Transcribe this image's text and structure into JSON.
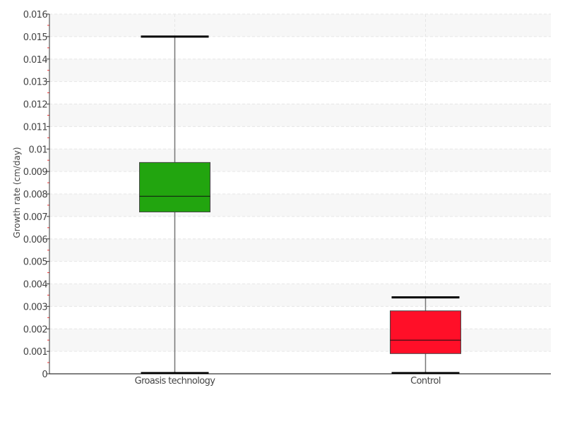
{
  "chart_data": {
    "type": "boxplot",
    "title": "",
    "xlabel": "",
    "ylabel": "Growth rate (cm/day)",
    "ylim": [
      0,
      0.016
    ],
    "y_ticks": [
      "0",
      "0.001",
      "0.002",
      "0.003",
      "0.004",
      "0.005",
      "0.006",
      "0.007",
      "0.008",
      "0.009",
      "0.01",
      "0.011",
      "0.012",
      "0.013",
      "0.014",
      "0.015",
      "0.016"
    ],
    "grid": true,
    "categories": [
      "Groasis technology",
      "Control"
    ],
    "boxes": [
      {
        "category": "Groasis technology",
        "min": 0.0,
        "q1": 0.0072,
        "median": 0.0079,
        "q3": 0.0094,
        "max": 0.015,
        "color": "#22a50f"
      },
      {
        "category": "Control",
        "min": 0.0,
        "q1": 0.0009,
        "median": 0.0015,
        "q3": 0.0028,
        "max": 0.0034,
        "color": "#ff0f28"
      }
    ]
  }
}
